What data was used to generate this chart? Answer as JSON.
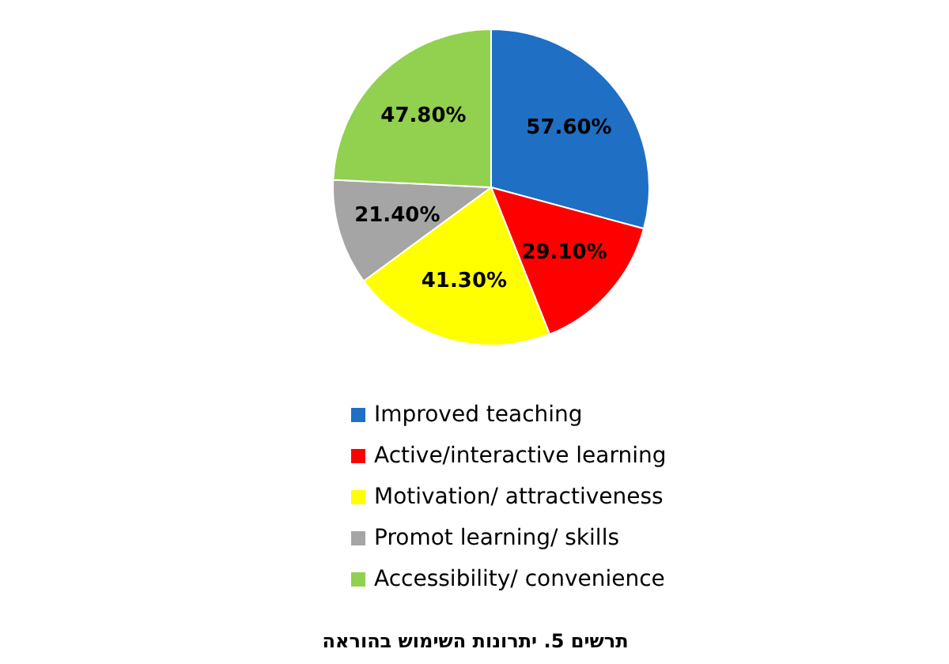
{
  "chart_data": {
    "type": "pie",
    "categories": [
      "Improved teaching",
      "Active/interactive learning",
      "Motivation/ attractiveness",
      "Promot learning/ skills",
      "Accessibility/ convenience"
    ],
    "values": [
      57.6,
      29.1,
      41.3,
      21.4,
      47.8
    ],
    "value_labels": [
      "57.60%",
      "29.10%",
      "41.30%",
      "21.40%",
      "47.80%"
    ],
    "colors": [
      "#1f6fc5",
      "#ff0000",
      "#ffff00",
      "#a5a5a5",
      "#92d050"
    ],
    "legend": "bottom",
    "annotations": [
      "תרשים 5. יתרונות השימוש בהוראה"
    ]
  }
}
